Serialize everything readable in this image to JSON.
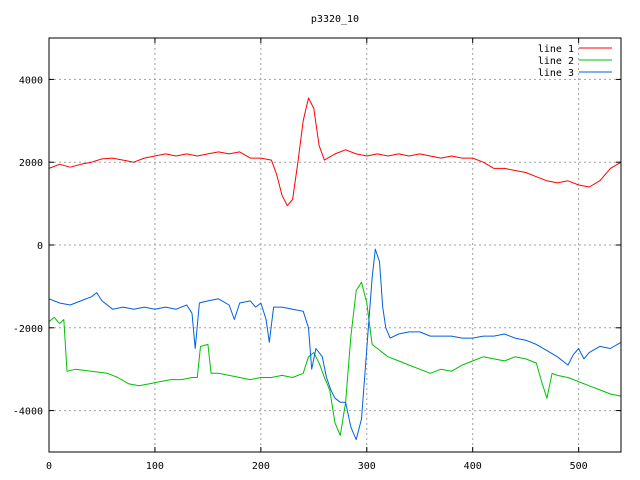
{
  "chart_data": {
    "type": "line",
    "title": "p3320_10",
    "xlabel": "",
    "ylabel": "",
    "xlim": [
      0,
      540
    ],
    "ylim": [
      -5000,
      5000
    ],
    "xticks": [
      0,
      100,
      200,
      300,
      400,
      500
    ],
    "yticks": [
      -4000,
      -2000,
      0,
      2000,
      4000
    ],
    "xtick_labels": [
      "0",
      "100",
      "200",
      "300",
      "400",
      "500"
    ],
    "ytick_labels": [
      "-4000",
      "-2000",
      "0",
      "2000",
      "4000"
    ],
    "grid": true,
    "legend_position": "top-right",
    "series": [
      {
        "name": "line 1",
        "color": "#ff0000",
        "points": [
          [
            0,
            1850
          ],
          [
            10,
            1950
          ],
          [
            20,
            1880
          ],
          [
            30,
            1950
          ],
          [
            40,
            2000
          ],
          [
            50,
            2080
          ],
          [
            60,
            2100
          ],
          [
            70,
            2050
          ],
          [
            80,
            2000
          ],
          [
            90,
            2100
          ],
          [
            100,
            2150
          ],
          [
            110,
            2200
          ],
          [
            120,
            2150
          ],
          [
            130,
            2200
          ],
          [
            140,
            2150
          ],
          [
            150,
            2200
          ],
          [
            160,
            2250
          ],
          [
            170,
            2200
          ],
          [
            180,
            2250
          ],
          [
            190,
            2100
          ],
          [
            200,
            2100
          ],
          [
            210,
            2050
          ],
          [
            215,
            1700
          ],
          [
            220,
            1200
          ],
          [
            225,
            950
          ],
          [
            230,
            1100
          ],
          [
            235,
            2000
          ],
          [
            240,
            3000
          ],
          [
            245,
            3550
          ],
          [
            250,
            3300
          ],
          [
            255,
            2400
          ],
          [
            260,
            2050
          ],
          [
            270,
            2200
          ],
          [
            280,
            2300
          ],
          [
            290,
            2200
          ],
          [
            300,
            2150
          ],
          [
            310,
            2200
          ],
          [
            320,
            2150
          ],
          [
            330,
            2200
          ],
          [
            340,
            2150
          ],
          [
            350,
            2200
          ],
          [
            360,
            2150
          ],
          [
            370,
            2100
          ],
          [
            380,
            2150
          ],
          [
            390,
            2100
          ],
          [
            400,
            2100
          ],
          [
            410,
            2000
          ],
          [
            420,
            1850
          ],
          [
            430,
            1850
          ],
          [
            440,
            1800
          ],
          [
            450,
            1750
          ],
          [
            460,
            1650
          ],
          [
            470,
            1550
          ],
          [
            480,
            1500
          ],
          [
            490,
            1550
          ],
          [
            500,
            1450
          ],
          [
            510,
            1400
          ],
          [
            520,
            1550
          ],
          [
            530,
            1850
          ],
          [
            540,
            2000
          ]
        ]
      },
      {
        "name": "line 2",
        "color": "#00c000",
        "points": [
          [
            0,
            -1850
          ],
          [
            5,
            -1750
          ],
          [
            10,
            -1900
          ],
          [
            14,
            -1800
          ],
          [
            17,
            -3050
          ],
          [
            25,
            -3000
          ],
          [
            40,
            -3050
          ],
          [
            55,
            -3100
          ],
          [
            65,
            -3200
          ],
          [
            75,
            -3350
          ],
          [
            85,
            -3400
          ],
          [
            95,
            -3350
          ],
          [
            105,
            -3300
          ],
          [
            115,
            -3250
          ],
          [
            125,
            -3250
          ],
          [
            135,
            -3200
          ],
          [
            140,
            -3200
          ],
          [
            143,
            -2450
          ],
          [
            150,
            -2400
          ],
          [
            153,
            -3100
          ],
          [
            160,
            -3100
          ],
          [
            170,
            -3150
          ],
          [
            180,
            -3200
          ],
          [
            190,
            -3250
          ],
          [
            200,
            -3200
          ],
          [
            210,
            -3200
          ],
          [
            220,
            -3150
          ],
          [
            230,
            -3200
          ],
          [
            240,
            -3100
          ],
          [
            245,
            -2700
          ],
          [
            250,
            -2600
          ],
          [
            255,
            -2850
          ],
          [
            260,
            -3200
          ],
          [
            265,
            -3500
          ],
          [
            270,
            -4300
          ],
          [
            275,
            -4600
          ],
          [
            280,
            -3800
          ],
          [
            285,
            -2200
          ],
          [
            290,
            -1100
          ],
          [
            295,
            -900
          ],
          [
            300,
            -1400
          ],
          [
            305,
            -2400
          ],
          [
            310,
            -2500
          ],
          [
            320,
            -2700
          ],
          [
            330,
            -2800
          ],
          [
            340,
            -2900
          ],
          [
            350,
            -3000
          ],
          [
            360,
            -3100
          ],
          [
            370,
            -3000
          ],
          [
            380,
            -3050
          ],
          [
            390,
            -2900
          ],
          [
            400,
            -2800
          ],
          [
            410,
            -2700
          ],
          [
            420,
            -2750
          ],
          [
            430,
            -2800
          ],
          [
            440,
            -2700
          ],
          [
            450,
            -2750
          ],
          [
            460,
            -2850
          ],
          [
            465,
            -3300
          ],
          [
            470,
            -3700
          ],
          [
            475,
            -3100
          ],
          [
            480,
            -3150
          ],
          [
            490,
            -3200
          ],
          [
            500,
            -3300
          ],
          [
            510,
            -3400
          ],
          [
            520,
            -3500
          ],
          [
            530,
            -3600
          ],
          [
            540,
            -3650
          ]
        ]
      },
      {
        "name": "line 3",
        "color": "#0060e0",
        "points": [
          [
            0,
            -1300
          ],
          [
            10,
            -1400
          ],
          [
            20,
            -1450
          ],
          [
            30,
            -1350
          ],
          [
            40,
            -1250
          ],
          [
            45,
            -1150
          ],
          [
            50,
            -1350
          ],
          [
            60,
            -1550
          ],
          [
            70,
            -1500
          ],
          [
            80,
            -1550
          ],
          [
            90,
            -1500
          ],
          [
            100,
            -1550
          ],
          [
            110,
            -1500
          ],
          [
            120,
            -1550
          ],
          [
            130,
            -1450
          ],
          [
            135,
            -1650
          ],
          [
            138,
            -2500
          ],
          [
            142,
            -1400
          ],
          [
            150,
            -1350
          ],
          [
            160,
            -1300
          ],
          [
            170,
            -1450
          ],
          [
            175,
            -1800
          ],
          [
            180,
            -1400
          ],
          [
            190,
            -1350
          ],
          [
            195,
            -1500
          ],
          [
            200,
            -1400
          ],
          [
            205,
            -1800
          ],
          [
            208,
            -2350
          ],
          [
            212,
            -1500
          ],
          [
            220,
            -1500
          ],
          [
            230,
            -1550
          ],
          [
            240,
            -1600
          ],
          [
            245,
            -2000
          ],
          [
            248,
            -3000
          ],
          [
            252,
            -2500
          ],
          [
            258,
            -2700
          ],
          [
            262,
            -3200
          ],
          [
            266,
            -3500
          ],
          [
            270,
            -3700
          ],
          [
            275,
            -3800
          ],
          [
            280,
            -3800
          ],
          [
            285,
            -4400
          ],
          [
            290,
            -4700
          ],
          [
            295,
            -4200
          ],
          [
            300,
            -2500
          ],
          [
            305,
            -800
          ],
          [
            308,
            -100
          ],
          [
            312,
            -400
          ],
          [
            315,
            -1500
          ],
          [
            318,
            -2000
          ],
          [
            322,
            -2250
          ],
          [
            330,
            -2150
          ],
          [
            340,
            -2100
          ],
          [
            350,
            -2100
          ],
          [
            360,
            -2200
          ],
          [
            370,
            -2200
          ],
          [
            380,
            -2200
          ],
          [
            390,
            -2250
          ],
          [
            400,
            -2250
          ],
          [
            410,
            -2200
          ],
          [
            420,
            -2200
          ],
          [
            430,
            -2150
          ],
          [
            440,
            -2250
          ],
          [
            450,
            -2300
          ],
          [
            460,
            -2400
          ],
          [
            470,
            -2550
          ],
          [
            480,
            -2700
          ],
          [
            490,
            -2900
          ],
          [
            495,
            -2650
          ],
          [
            500,
            -2500
          ],
          [
            505,
            -2750
          ],
          [
            510,
            -2600
          ],
          [
            520,
            -2450
          ],
          [
            530,
            -2500
          ],
          [
            540,
            -2350
          ]
        ]
      }
    ]
  }
}
